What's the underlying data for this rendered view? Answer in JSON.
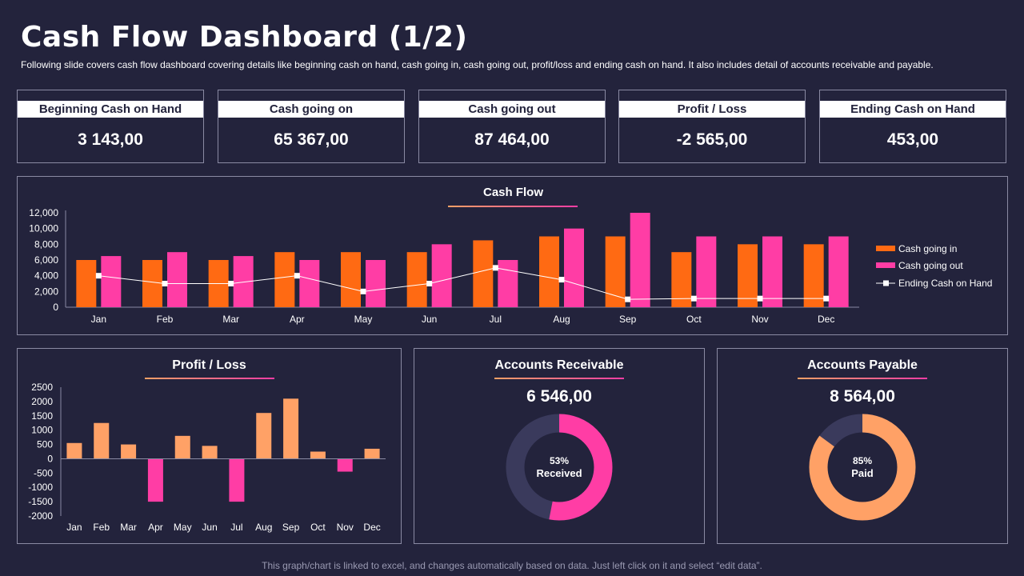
{
  "header": {
    "title": "Cash Flow Dashboard (1/2)",
    "subtitle": "Following slide covers cash flow dashboard covering details like beginning cash on hand, cash going in, cash going out, profit/loss and ending cash on hand. It also includes detail of accounts receivable and payable."
  },
  "kpis": [
    {
      "label": "Beginning Cash on Hand",
      "value": "3 143,00"
    },
    {
      "label": "Cash going on",
      "value": "65 367,00"
    },
    {
      "label": "Cash going out",
      "value": "87 464,00"
    },
    {
      "label": "Profit / Loss",
      "value": "-2 565,00"
    },
    {
      "label": "Ending Cash on Hand",
      "value": "453,00"
    }
  ],
  "colors": {
    "background": "#23233c",
    "orange": "#ff6a13",
    "pink": "#ff3da5",
    "peach": "#ffa166",
    "donut_track": "#3a3a5c"
  },
  "footer": "This graph/chart is linked to excel, and changes automatically based on data. Just left click on it and select “edit data”.",
  "chart_data": [
    {
      "type": "bar",
      "title": "Cash Flow",
      "categories": [
        "Jan",
        "Feb",
        "Mar",
        "Apr",
        "May",
        "Jun",
        "Jul",
        "Aug",
        "Sep",
        "Oct",
        "Nov",
        "Dec"
      ],
      "series": [
        {
          "name": "Cash going in",
          "kind": "bar",
          "color": "#ff6a13",
          "values": [
            6000,
            6000,
            6000,
            7000,
            7000,
            7000,
            8500,
            9000,
            9000,
            7000,
            8000,
            8000
          ]
        },
        {
          "name": "Cash going out",
          "kind": "bar",
          "color": "#ff3da5",
          "values": [
            6500,
            7000,
            6500,
            6000,
            6000,
            8000,
            6000,
            10000,
            12000,
            9000,
            9000,
            9000
          ]
        },
        {
          "name": "Ending Cash on Hand",
          "kind": "line",
          "color": "#ffffff",
          "values": [
            4000,
            3000,
            3000,
            4000,
            2000,
            3000,
            5000,
            3500,
            1000,
            1100,
            1100,
            1100
          ]
        }
      ],
      "ylim": [
        0,
        12000
      ],
      "yticks": [
        "0",
        "2,000",
        "4,000",
        "6,000",
        "8,000",
        "10,000",
        "12,000"
      ],
      "legend": "right"
    },
    {
      "type": "bar",
      "title": "Profit / Loss",
      "categories": [
        "Jan",
        "Feb",
        "Mar",
        "Apr",
        "May",
        "Jun",
        "Jul",
        "Aug",
        "Sep",
        "Oct",
        "Nov",
        "Dec"
      ],
      "values": [
        550,
        1250,
        500,
        -1500,
        800,
        450,
        -1500,
        1600,
        2100,
        250,
        -450,
        350
      ],
      "positive_color": "#ffa166",
      "negative_color": "#ff3da5",
      "ylim": [
        -2000,
        2500
      ],
      "yticks": [
        "-2000",
        "-1500",
        "-1000",
        "-500",
        "0",
        "500",
        "1000",
        "1500",
        "2000",
        "2500"
      ]
    },
    {
      "type": "pie",
      "variant": "donut",
      "title": "Accounts Receivable",
      "total": "6 546,00",
      "percent": 53,
      "label_pct": "53%",
      "label": "Received",
      "color": "#ff3da5"
    },
    {
      "type": "pie",
      "variant": "donut",
      "title": "Accounts Payable",
      "total": "8 564,00",
      "percent": 85,
      "label_pct": "85%",
      "label": "Paid",
      "color": "#ffa166"
    }
  ]
}
